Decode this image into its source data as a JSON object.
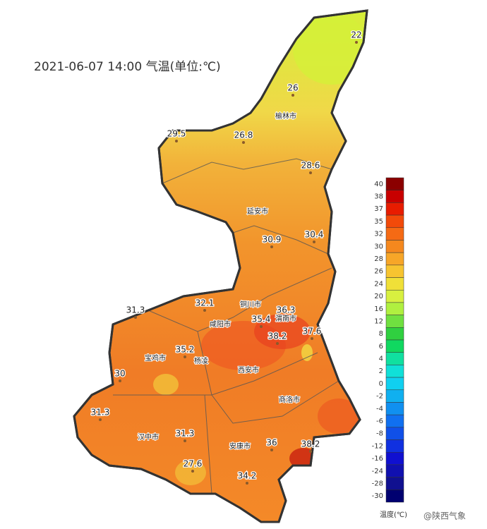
{
  "title": "2021-06-07 14:00 气温(单位:℃)",
  "stations": [
    22,
    26,
    29.5,
    26.8,
    28.6,
    30.9,
    30.4,
    32.1,
    31.3,
    36.3,
    35.4,
    38.2,
    37.6,
    35.2,
    30,
    31.3,
    31.3,
    36,
    38.2,
    27.6,
    34.2
  ],
  "cities": [
    "榆林市",
    "延安市",
    "铜川市",
    "渭南市",
    "咸阳市",
    "宝鸡市",
    "杨凌",
    "西安市",
    "商洛市",
    "汉中市",
    "安康市"
  ],
  "legend": {
    "title": "温度(℃)",
    "ticks": [
      40,
      38,
      37,
      35,
      32,
      30,
      28,
      26,
      24,
      20,
      16,
      12,
      8,
      6,
      4,
      2,
      0,
      -2,
      -4,
      -6,
      -8,
      -12,
      -16,
      -24,
      -28,
      -30
    ],
    "colors": [
      "#8b0000",
      "#c80000",
      "#e81c00",
      "#f24a0a",
      "#f56a14",
      "#f5881e",
      "#f7a628",
      "#f7c430",
      "#f0e038",
      "#d8f040",
      "#b0f040",
      "#70e040",
      "#30d040",
      "#10d860",
      "#10e0a0",
      "#10e0d8",
      "#10d0f0",
      "#10b0f0",
      "#1090f0",
      "#1070f0",
      "#1050e8",
      "#1030e0",
      "#1010d0",
      "#1010b0",
      "#101090",
      "#000070"
    ]
  },
  "watermark": "@陕西气象"
}
